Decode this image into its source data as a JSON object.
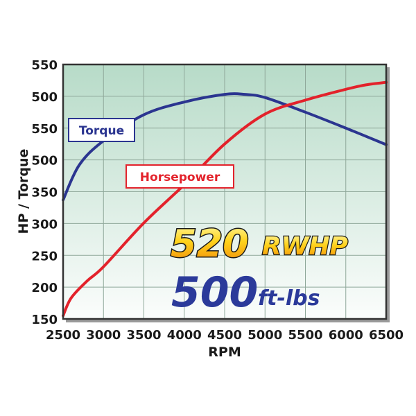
{
  "chart_data": {
    "type": "line",
    "title": "",
    "xlabel": "RPM",
    "ylabel": "HP / Torque",
    "xlim": [
      2500,
      6500
    ],
    "ylim": [
      150,
      550
    ],
    "grid": true,
    "x_ticks": [
      "2500",
      "3000",
      "3500",
      "4000",
      "4500",
      "5000",
      "5500",
      "6000",
      "6500"
    ],
    "y_ticks": [
      "150",
      "200",
      "250",
      "300",
      "350",
      "500",
      "550",
      "500",
      "550"
    ],
    "series": [
      {
        "name": "Torque",
        "color": "#2b3590",
        "x": [
          2500,
          2700,
          3000,
          3500,
          4000,
          4500,
          4750,
          5000,
          5500,
          6000,
          6500
        ],
        "values": [
          337,
          392,
          430,
          471,
          491,
          503,
          503,
          498,
          475,
          450,
          424
        ]
      },
      {
        "name": "Horsepower",
        "color": "#e3222b",
        "x": [
          2500,
          2600,
          2800,
          3000,
          3500,
          4000,
          4500,
          5000,
          5500,
          6000,
          6250,
          6500
        ],
        "values": [
          155,
          183,
          210,
          232,
          301,
          361,
          425,
          472,
          494,
          511,
          518,
          522
        ]
      }
    ],
    "legend": "inline labels",
    "annotations": [
      {
        "text": "520",
        "suffix": "RWHP"
      },
      {
        "text": "500",
        "suffix": "ft-lbs"
      }
    ]
  },
  "labels": {
    "torque": "Torque",
    "horsepower": "Horsepower"
  },
  "headline": {
    "hp_value": "520",
    "hp_unit": "RWHP",
    "tq_value": "500",
    "tq_unit": "ft-lbs"
  },
  "axes": {
    "x_title": "RPM",
    "y_title": "HP / Torque"
  },
  "colors": {
    "torque": "#2b3590",
    "horsepower": "#e3222b",
    "bg_top": "#b7dbc8",
    "bg_bottom": "#fbfdfc",
    "grid": "#8fa89a",
    "frame": "#333333",
    "headline_blue": "#2b3a9a"
  }
}
